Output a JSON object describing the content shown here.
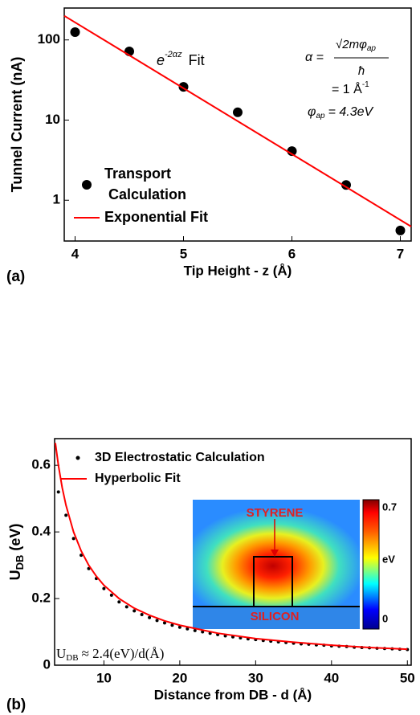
{
  "chart_data": [
    {
      "type": "line",
      "panel_label": "(a)",
      "xlabel": "Tip Height - z (Å)",
      "ylabel": "Tunnel Current (nA)",
      "xlim": [
        3.9,
        7.1
      ],
      "ylim": [
        0.31,
        250
      ],
      "xticks": [
        4,
        5,
        6,
        7
      ],
      "yticks": [
        1,
        10,
        100
      ],
      "ylog": true,
      "series": [
        {
          "name": "Transport Calculation",
          "style": "markers",
          "color": "#000000",
          "x": [
            4,
            4.5,
            5,
            5.5,
            6,
            6.5,
            7
          ],
          "values": [
            125,
            72,
            26,
            12.5,
            4.1,
            1.55,
            0.42
          ]
        },
        {
          "name": "Exponential Fit",
          "style": "line",
          "color": "#ff0000",
          "x": [
            3.9,
            7.1
          ],
          "values": [
            200,
            0.47
          ]
        }
      ],
      "annotations": {
        "fit_e": "e",
        "fit_exp": "-2αz",
        "fit_word": "Fit",
        "alpha_lhs": "α =",
        "alpha_num": "√2mφ",
        "alpha_num_sub": "ap",
        "alpha_den": "ħ",
        "alpha_val": "= 1 Å",
        "alpha_val_exp": "-1",
        "phi": "φ",
        "phi_sub": "ap",
        "phi_val": "= 4.3eV"
      }
    },
    {
      "type": "line",
      "panel_label": "(b)",
      "xlabel": "Distance from DB - d (Å)",
      "ylabel": "U",
      "ylabel_sub": "DB",
      "ylabel_tail": " (eV)",
      "xlim": [
        3.5,
        50.5
      ],
      "ylim": [
        0,
        0.68
      ],
      "xticks": [
        10,
        20,
        30,
        40,
        50
      ],
      "yticks": [
        0,
        0.2,
        0.4,
        0.6
      ],
      "ylog": false,
      "series": [
        {
          "name": "3D Electrostatic Calculation",
          "style": "markers",
          "color": "#000000",
          "x": [
            4,
            5,
            6,
            7,
            8,
            9,
            10,
            11,
            12,
            13,
            14,
            15,
            16,
            17,
            18,
            19,
            20,
            21,
            22,
            23,
            24,
            25,
            26,
            27,
            28,
            29,
            30,
            31,
            32,
            33,
            34,
            35,
            36,
            37,
            38,
            39,
            40,
            41,
            42,
            43,
            44,
            45,
            46,
            47,
            48,
            49,
            50
          ],
          "values": [
            0.52,
            0.45,
            0.38,
            0.33,
            0.29,
            0.26,
            0.23,
            0.21,
            0.19,
            0.175,
            0.163,
            0.152,
            0.143,
            0.134,
            0.127,
            0.12,
            0.114,
            0.109,
            0.104,
            0.1,
            0.096,
            0.092,
            0.088,
            0.085,
            0.082,
            0.079,
            0.077,
            0.074,
            0.072,
            0.07,
            0.068,
            0.066,
            0.064,
            0.063,
            0.061,
            0.06,
            0.058,
            0.057,
            0.056,
            0.054,
            0.053,
            0.052,
            0.051,
            0.05,
            0.049,
            0.048,
            0.047
          ]
        },
        {
          "name": "Hyperbolic Fit",
          "style": "line",
          "color": "#ff0000",
          "x": [
            3.6,
            4,
            4.5,
            5,
            6,
            7,
            8,
            9,
            10,
            12,
            14,
            16,
            18,
            20,
            25,
            30,
            35,
            40,
            45,
            50
          ],
          "values": [
            0.667,
            0.6,
            0.533,
            0.48,
            0.4,
            0.343,
            0.3,
            0.267,
            0.24,
            0.2,
            0.171,
            0.15,
            0.133,
            0.12,
            0.096,
            0.08,
            0.069,
            0.06,
            0.053,
            0.048
          ]
        }
      ],
      "annotations": {
        "formula_u": "U",
        "formula_sub": "DB",
        "formula_rest": "≈ 2.4(eV)/d(Å)"
      },
      "inset": {
        "top_label": "STYRENE",
        "bottom_label": "SILICON",
        "colorbar_label": "eV",
        "colorbar_ticks": [
          0,
          0.7
        ]
      }
    }
  ]
}
